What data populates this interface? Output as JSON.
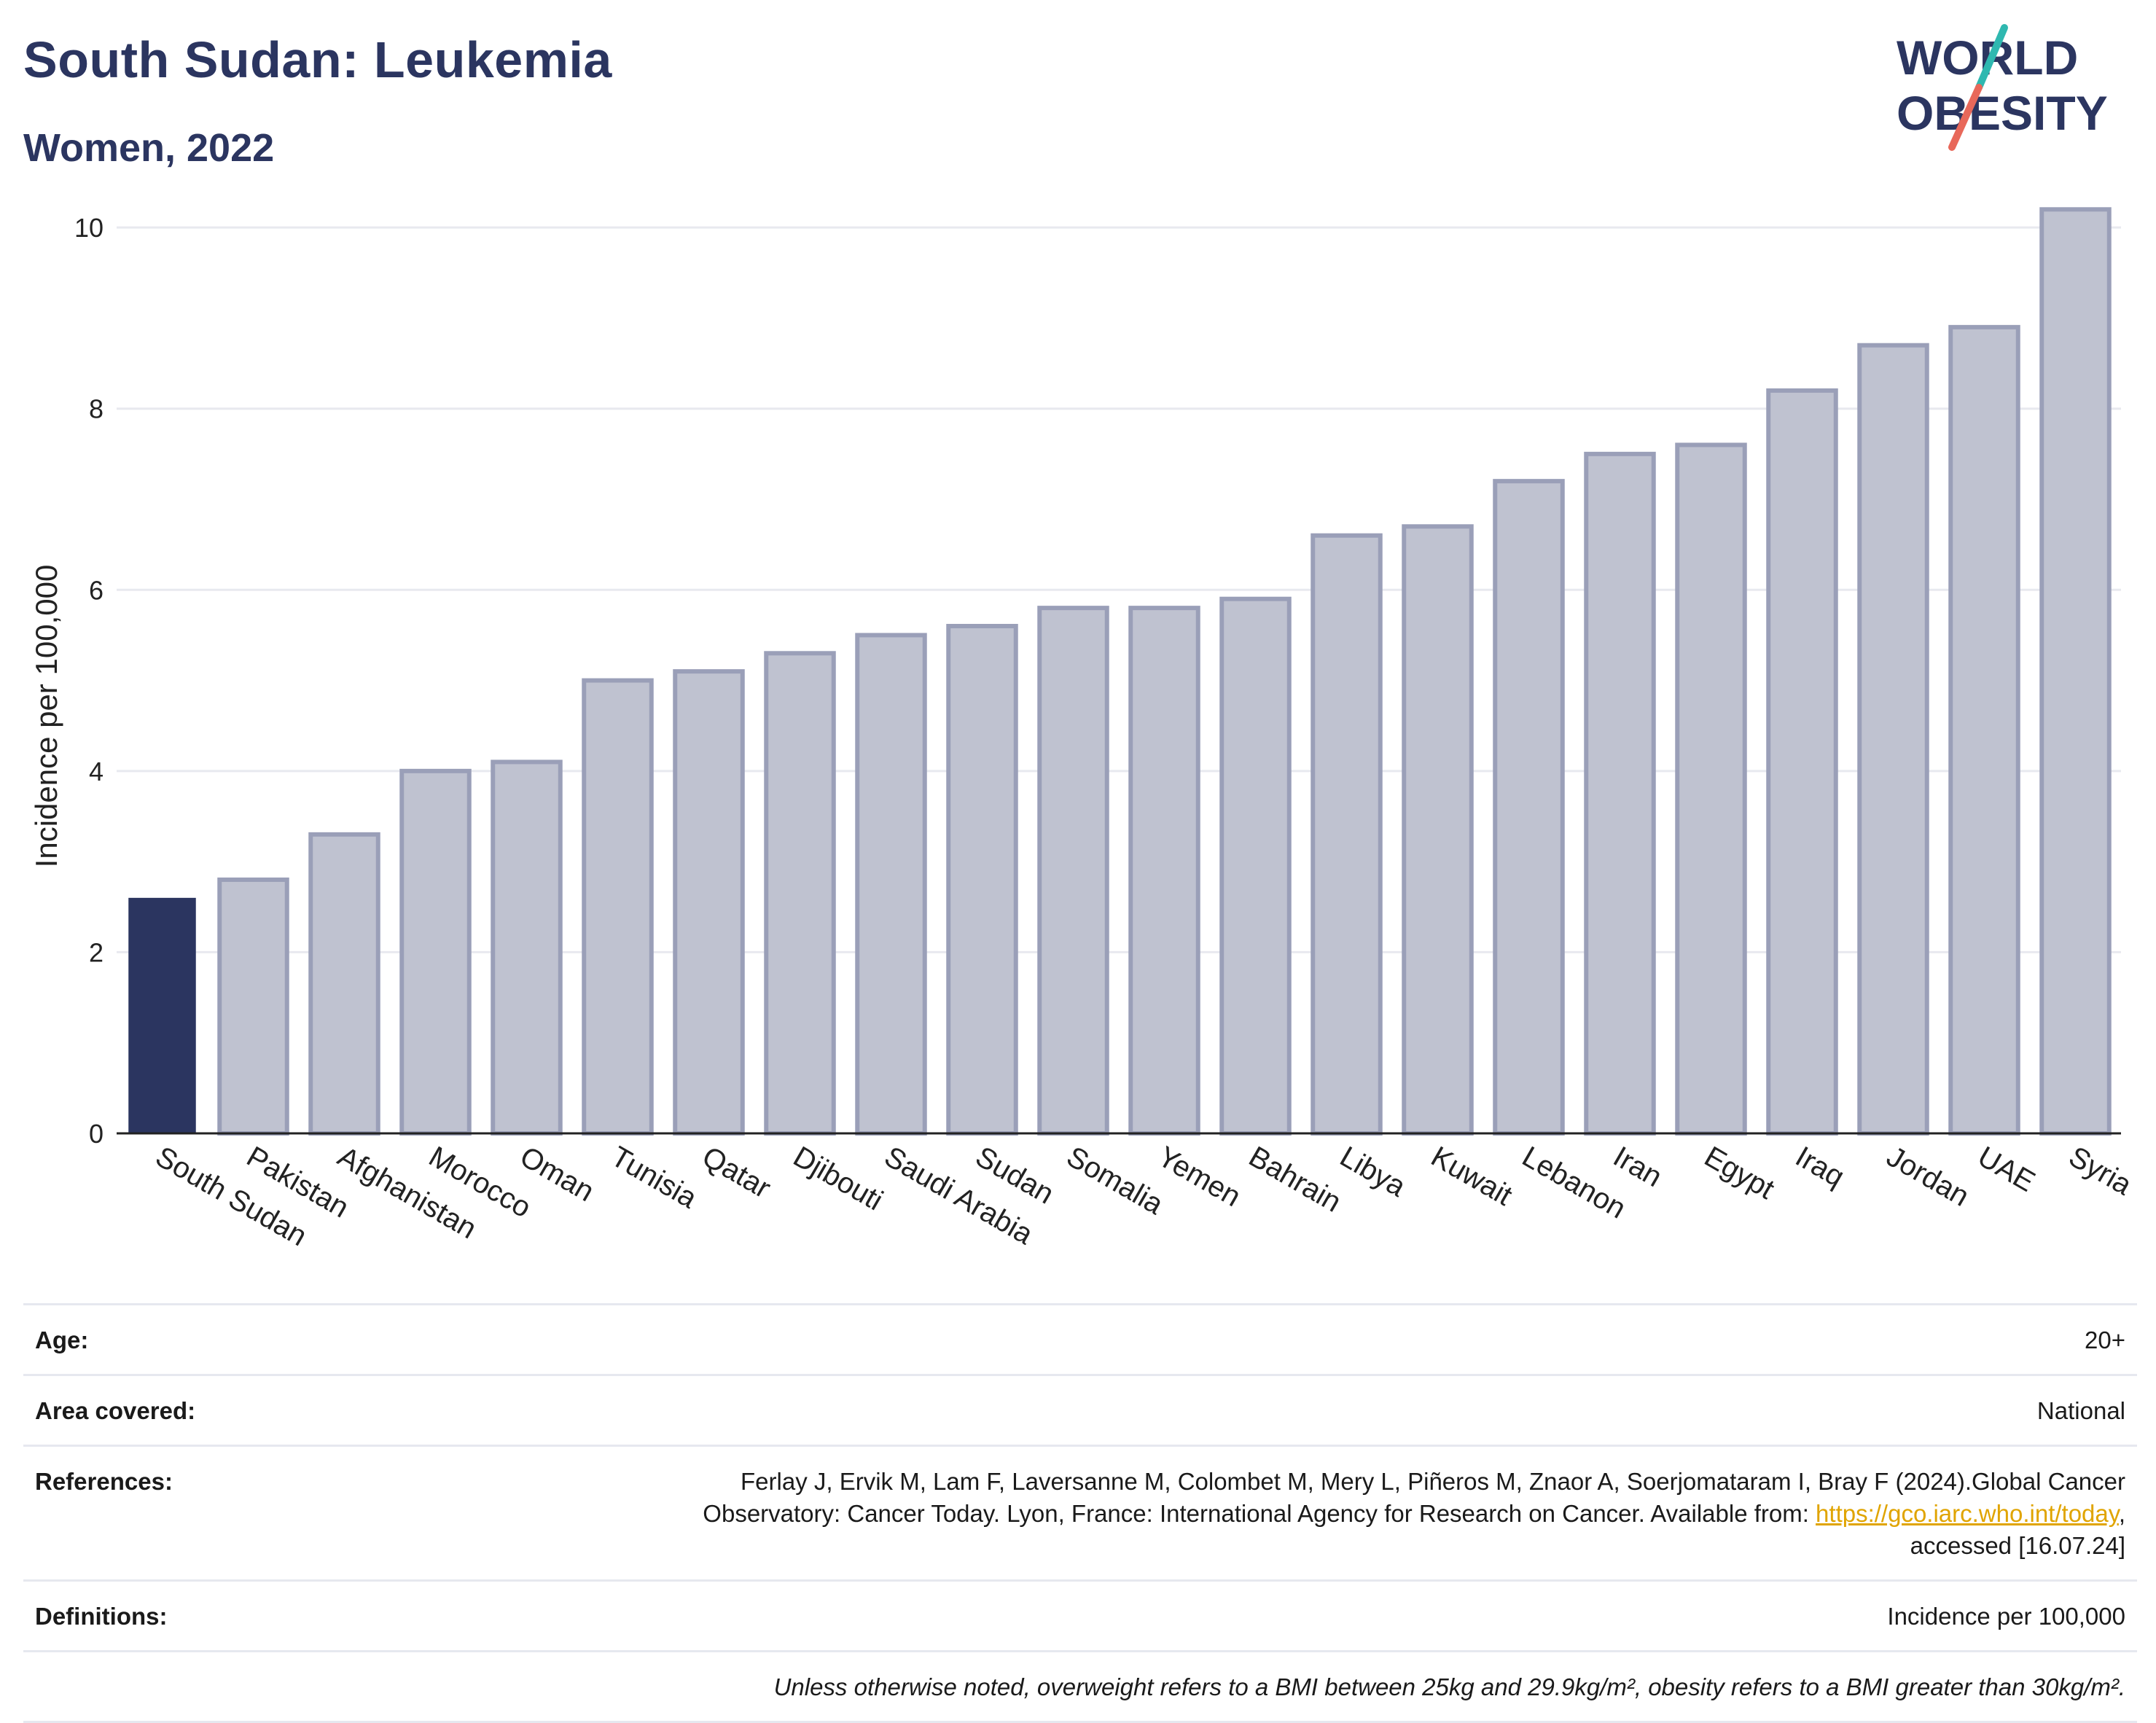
{
  "header": {
    "title": "South Sudan: Leukemia",
    "subtitle": "Women, 2022"
  },
  "logo": {
    "line1": "WORLD",
    "line2": "OBESITY",
    "color_text": "#2b3560",
    "color_slash_top": "#2fb8b0",
    "color_slash_bottom": "#e8685a"
  },
  "chart_data": {
    "type": "bar",
    "title": "South Sudan: Leukemia",
    "subtitle": "Women, 2022",
    "xlabel": "",
    "ylabel": "Incidence per 100,000",
    "ylim": [
      0,
      10.5
    ],
    "yticks": [
      0,
      2,
      4,
      6,
      8,
      10
    ],
    "grid": true,
    "highlight": "South Sudan",
    "colors": {
      "highlight": "#2b3560",
      "bar_fill": "#bfc2d0",
      "bar_border": "#9a9fb8"
    },
    "categories": [
      "South Sudan",
      "Pakistan",
      "Afghanistan",
      "Morocco",
      "Oman",
      "Tunisia",
      "Qatar",
      "Djibouti",
      "Saudi Arabia",
      "Sudan",
      "Somalia",
      "Yemen",
      "Bahrain",
      "Libya",
      "Kuwait",
      "Lebanon",
      "Iran",
      "Egypt",
      "Iraq",
      "Jordan",
      "UAE",
      "Syria"
    ],
    "values": [
      2.6,
      2.8,
      3.3,
      4.0,
      4.1,
      5.0,
      5.1,
      5.3,
      5.5,
      5.6,
      5.8,
      5.8,
      5.9,
      6.6,
      6.7,
      7.2,
      7.5,
      7.6,
      8.2,
      8.7,
      8.9,
      10.2
    ]
  },
  "meta": {
    "rows": [
      {
        "key": "Age:",
        "value": "20+"
      },
      {
        "key": "Area covered:",
        "value": "National"
      },
      {
        "key": "References:",
        "value_line1": "Ferlay J, Ervik M, Lam F, Laversanne M, Colombet M, Mery L, Piñeros M, Znaor A, Soerjomataram I, Bray F (2024).Global Cancer",
        "value_line2_pre": "Observatory: Cancer Today. Lyon, France: International Agency for Research on Cancer. Available from: ",
        "link": "https://gco.iarc.who.int/today",
        "value_line2_post": ",",
        "value_line3": "accessed [16.07.24]"
      },
      {
        "key": "Definitions:",
        "value": "Incidence per 100,000"
      },
      {
        "key": "",
        "value": "Unless otherwise noted, overweight refers to a BMI between 25kg and 29.9kg/m², obesity refers to a BMI greater than 30kg/m²."
      }
    ]
  }
}
